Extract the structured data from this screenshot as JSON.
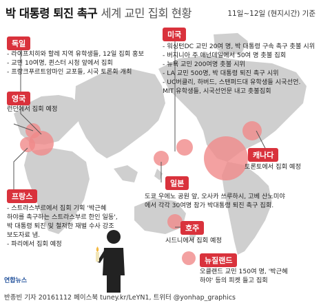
{
  "header": {
    "title_bold": "박 대통령 퇴진 촉구",
    "title_rest": "세계 교민 집회 현황",
    "date_range": "11일~12일 (현지시간) 기준"
  },
  "regions": {
    "germany": {
      "label": "독일",
      "items": [
        "- 라이프치히와 할레 지역 유학생들, 12일 집회 홍보",
        "- 교민 10여명, 퀸스터 시청 앞에서 집회",
        "- 프랑크푸르트암마인 교포들, 시국 토론회 개최"
      ]
    },
    "uk": {
      "label": "영국",
      "items": [
        "런던에서 집회 예정"
      ]
    },
    "france": {
      "label": "프랑스",
      "items": [
        "- 스트라스부르에서 집회 기획 '박근혜",
        "하야를 촉구하는 스트라스부르 한인 일동',",
        "박 대통령 퇴진 및 철저한 재벌 수사 강조",
        "보도자료 냄.",
        "- 파리에서 집회 예정"
      ]
    },
    "usa": {
      "label": "미국",
      "items": [
        "- 워싱턴DC 교민 20여 명, 박 대통령 구속 촉구 촛불 시위",
        "- 버지니아 주 애넌데일에서 50여 명 촛불 집회",
        "- 뉴욕 교민 200여명 촛불 시위",
        "- LA 교민 500명, 박 대통령 퇴진 촉구 시위",
        "- UC버클리, 하버드, 스탠퍼드대 유학생들 시국선언.",
        "  MIT 유학생들, 시국선언문 내고 촛불집회"
      ]
    },
    "canada": {
      "label": "캐나다",
      "items": [
        "토론토에서 집회 예정"
      ]
    },
    "japan": {
      "label": "일본",
      "items": [
        "도쿄 우에노 공원 앞, 오사카 쓰루하시, 고베 산노미야",
        "에서 각각 30여명 참가 박대통령 퇴진 촉구 집회."
      ]
    },
    "australia": {
      "label": "호주",
      "items": [
        "시드니에서 집회 예정"
      ]
    },
    "newzealand": {
      "label": "뉴질랜드",
      "items": [
        "오클랜드 교민 150여 명, '박근혜",
        "하야' 등의 피켓 들고 집회"
      ]
    }
  },
  "footer": {
    "credit": "반종빈 기자 20161112  페이스북 tuney.kr/LeYN1, 트위터 @yonhap_graphics",
    "logo": "연합뉴스"
  },
  "colors": {
    "accent": "#d9323c",
    "land": "#c9c9c9",
    "bubble": "#f08a8a"
  }
}
